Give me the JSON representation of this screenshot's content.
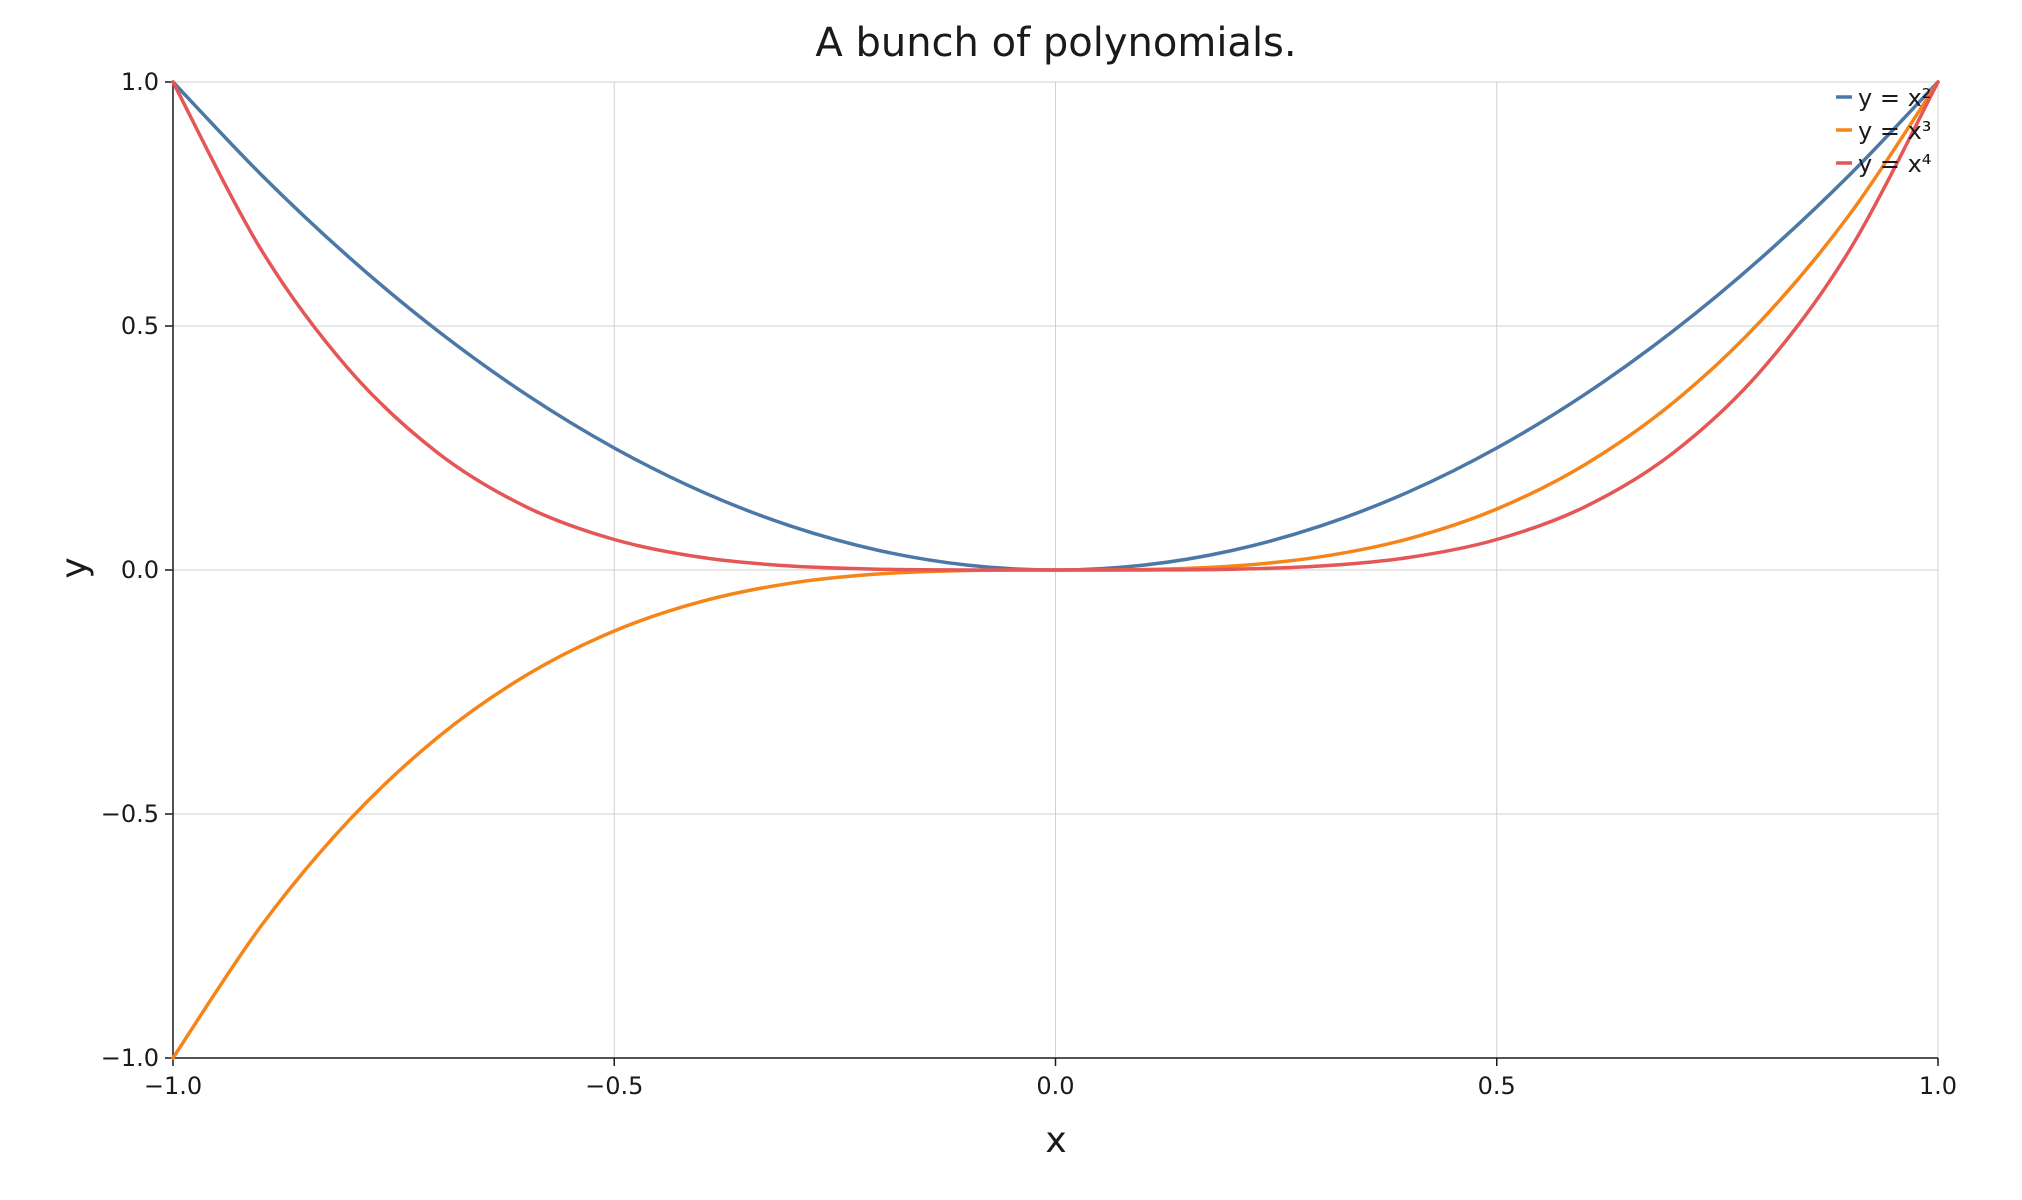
{
  "chart_data": {
    "type": "line",
    "title": "A bunch of polynomials.",
    "xlabel": "x",
    "ylabel": "y",
    "xlim": [
      -1.0,
      1.0
    ],
    "ylim": [
      -1.0,
      1.0
    ],
    "grid": true,
    "legend_position": "top-right",
    "x_ticks": [
      -1.0,
      -0.5,
      0.0,
      0.5,
      1.0
    ],
    "x_tick_labels": [
      "−1.0",
      "−0.5",
      "0.0",
      "0.5",
      "1.0"
    ],
    "y_ticks": [
      -1.0,
      -0.5,
      0.0,
      0.5,
      1.0
    ],
    "y_tick_labels": [
      "−1.0",
      "−0.5",
      "0.0",
      "0.5",
      "1.0"
    ],
    "x": [
      -1.0,
      -0.9,
      -0.8,
      -0.7,
      -0.6,
      -0.5,
      -0.4,
      -0.3,
      -0.2,
      -0.1,
      0.0,
      0.1,
      0.2,
      0.3,
      0.4,
      0.5,
      0.6,
      0.7,
      0.8,
      0.9,
      1.0
    ],
    "series": [
      {
        "name": "y = x²",
        "color": "#4c78a8",
        "values": [
          1.0,
          0.81,
          0.64,
          0.49,
          0.36,
          0.25,
          0.16,
          0.09,
          0.04,
          0.01,
          0.0,
          0.01,
          0.04,
          0.09,
          0.16,
          0.25,
          0.36,
          0.49,
          0.64,
          0.81,
          1.0
        ]
      },
      {
        "name": "y = x³",
        "color": "#f58518",
        "values": [
          -1.0,
          -0.729,
          -0.512,
          -0.343,
          -0.216,
          -0.125,
          -0.064,
          -0.027,
          -0.008,
          -0.001,
          0.0,
          0.001,
          0.008,
          0.027,
          0.064,
          0.125,
          0.216,
          0.343,
          0.512,
          0.729,
          1.0
        ]
      },
      {
        "name": "y = x⁴",
        "color": "#e45756",
        "values": [
          1.0,
          0.6561,
          0.4096,
          0.2401,
          0.1296,
          0.0625,
          0.0256,
          0.0081,
          0.0016,
          0.0001,
          0.0,
          0.0001,
          0.0016,
          0.0081,
          0.0256,
          0.0625,
          0.1296,
          0.2401,
          0.4096,
          0.6561,
          1.0
        ]
      }
    ]
  }
}
